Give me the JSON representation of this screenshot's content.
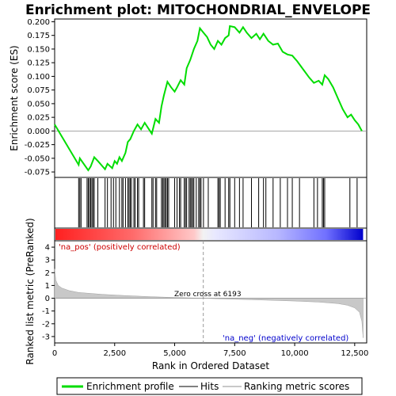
{
  "chart_data": {
    "type": "line",
    "title": "Enrichment plot: MITOCHONDRIAL_ENVELOPE",
    "xlabel": "Rank in Ordered Dataset",
    "ylabel_top": "Enrichment score (ES)",
    "ylabel_bottom": "Ranked list metric (PreRanked)",
    "xlim": [
      0,
      13000
    ],
    "x_ticks": [
      0,
      2500,
      5000,
      7500,
      10000,
      12500
    ],
    "x_tick_labels": [
      "0",
      "2,500",
      "5,000",
      "7,500",
      "10,000",
      "12,500"
    ],
    "es_ylim": [
      -0.085,
      0.205
    ],
    "es_ticks": [
      -0.075,
      -0.05,
      -0.025,
      0.0,
      0.025,
      0.05,
      0.075,
      0.1,
      0.125,
      0.15,
      0.175,
      0.2
    ],
    "es_tick_labels": [
      "-0.075",
      "-0.050",
      "-0.025",
      "0.000",
      "0.025",
      "0.050",
      "0.075",
      "0.100",
      "0.125",
      "0.150",
      "0.175",
      "0.200"
    ],
    "metric_ylim": [
      -3.5,
      4.5
    ],
    "metric_ticks": [
      -3,
      -2,
      -1,
      0,
      1,
      2,
      3,
      4
    ],
    "metric_tick_labels": [
      "-3",
      "-2",
      "-1",
      "0",
      "1",
      "2",
      "3",
      "4"
    ],
    "zero_cross_rank": 6193,
    "annotations": {
      "zero_cross": "Zero cross at 6193",
      "pos_label": "'na_pos' (positively correlated)",
      "neg_label": "'na_neg' (negatively correlated)"
    },
    "legend": [
      {
        "label": "Enrichment profile",
        "color": "#00dd00"
      },
      {
        "label": "Hits",
        "color": "#000000"
      },
      {
        "label": "Ranking metric scores",
        "color": "#c8c8c8"
      }
    ],
    "colors": {
      "es_line": "#00dd00",
      "hits": "#000000",
      "metric": "#c8c8c8",
      "pos": "#ff0000",
      "neg": "#0000ff",
      "zero_line": "#888888"
    },
    "es_profile": {
      "x": [
        0,
        1000,
        1050,
        1400,
        1500,
        1650,
        1800,
        2100,
        2200,
        2400,
        2500,
        2600,
        2700,
        2800,
        2950,
        3050,
        3150,
        3300,
        3450,
        3600,
        3750,
        3900,
        4050,
        4200,
        4350,
        4450,
        4550,
        4700,
        4850,
        5000,
        5100,
        5250,
        5400,
        5500,
        5650,
        5800,
        5950,
        6050,
        6200,
        6350,
        6500,
        6650,
        6800,
        6950,
        7100,
        7250,
        7300,
        7500,
        7700,
        7850,
        8000,
        8200,
        8400,
        8550,
        8700,
        8900,
        9100,
        9300,
        9500,
        9700,
        9900,
        10100,
        10400,
        10600,
        10800,
        11000,
        11150,
        11250,
        11400,
        11600,
        11800,
        12000,
        12200,
        12350,
        12500,
        12650,
        12800
      ],
      "y": [
        0.012,
        -0.062,
        -0.05,
        -0.072,
        -0.065,
        -0.048,
        -0.055,
        -0.07,
        -0.06,
        -0.068,
        -0.055,
        -0.06,
        -0.048,
        -0.055,
        -0.04,
        -0.02,
        -0.015,
        0.0,
        0.012,
        0.003,
        0.015,
        0.005,
        -0.005,
        0.022,
        0.015,
        0.045,
        0.065,
        0.09,
        0.08,
        0.072,
        0.08,
        0.093,
        0.085,
        0.115,
        0.13,
        0.15,
        0.165,
        0.188,
        0.18,
        0.172,
        0.158,
        0.15,
        0.165,
        0.158,
        0.17,
        0.175,
        0.192,
        0.19,
        0.18,
        0.19,
        0.18,
        0.17,
        0.178,
        0.168,
        0.178,
        0.165,
        0.158,
        0.16,
        0.145,
        0.14,
        0.138,
        0.128,
        0.11,
        0.098,
        0.088,
        0.092,
        0.085,
        0.102,
        0.095,
        0.08,
        0.06,
        0.04,
        0.025,
        0.03,
        0.02,
        0.012,
        0.0
      ]
    },
    "hits": [
      1000,
      1050,
      1100,
      1350,
      1400,
      1450,
      1500,
      1550,
      1600,
      1650,
      1800,
      2100,
      2200,
      2350,
      2450,
      2550,
      2700,
      2800,
      2850,
      2950,
      3050,
      3100,
      3150,
      3200,
      3300,
      3350,
      3450,
      3500,
      3700,
      3750,
      4050,
      4100,
      4200,
      4250,
      4450,
      4500,
      4550,
      4600,
      4650,
      4700,
      4750,
      5000,
      5100,
      5200,
      5250,
      5400,
      5450,
      5500,
      5600,
      5650,
      5700,
      5750,
      5800,
      5900,
      6000,
      6050,
      6100,
      6200,
      6400,
      6800,
      6850,
      6900,
      7100,
      7250,
      7300,
      7500,
      7700,
      7850,
      8200,
      8500,
      8700,
      8800,
      9100,
      9400,
      9700,
      9900,
      10200,
      10800,
      10950,
      11150,
      11200,
      11250,
      12300,
      12600
    ],
    "metric_profile": {
      "x": [
        0,
        50,
        150,
        300,
        600,
        1000,
        2000,
        3000,
        4000,
        5000,
        6193,
        7000,
        8000,
        9000,
        10000,
        11000,
        11800,
        12200,
        12500,
        12700,
        12800,
        12850
      ],
      "y": [
        2.3,
        1.4,
        1.0,
        0.8,
        0.6,
        0.45,
        0.3,
        0.2,
        0.12,
        0.06,
        0.0,
        -0.05,
        -0.1,
        -0.16,
        -0.22,
        -0.3,
        -0.42,
        -0.55,
        -0.75,
        -1.1,
        -1.8,
        -3.1
      ]
    }
  }
}
